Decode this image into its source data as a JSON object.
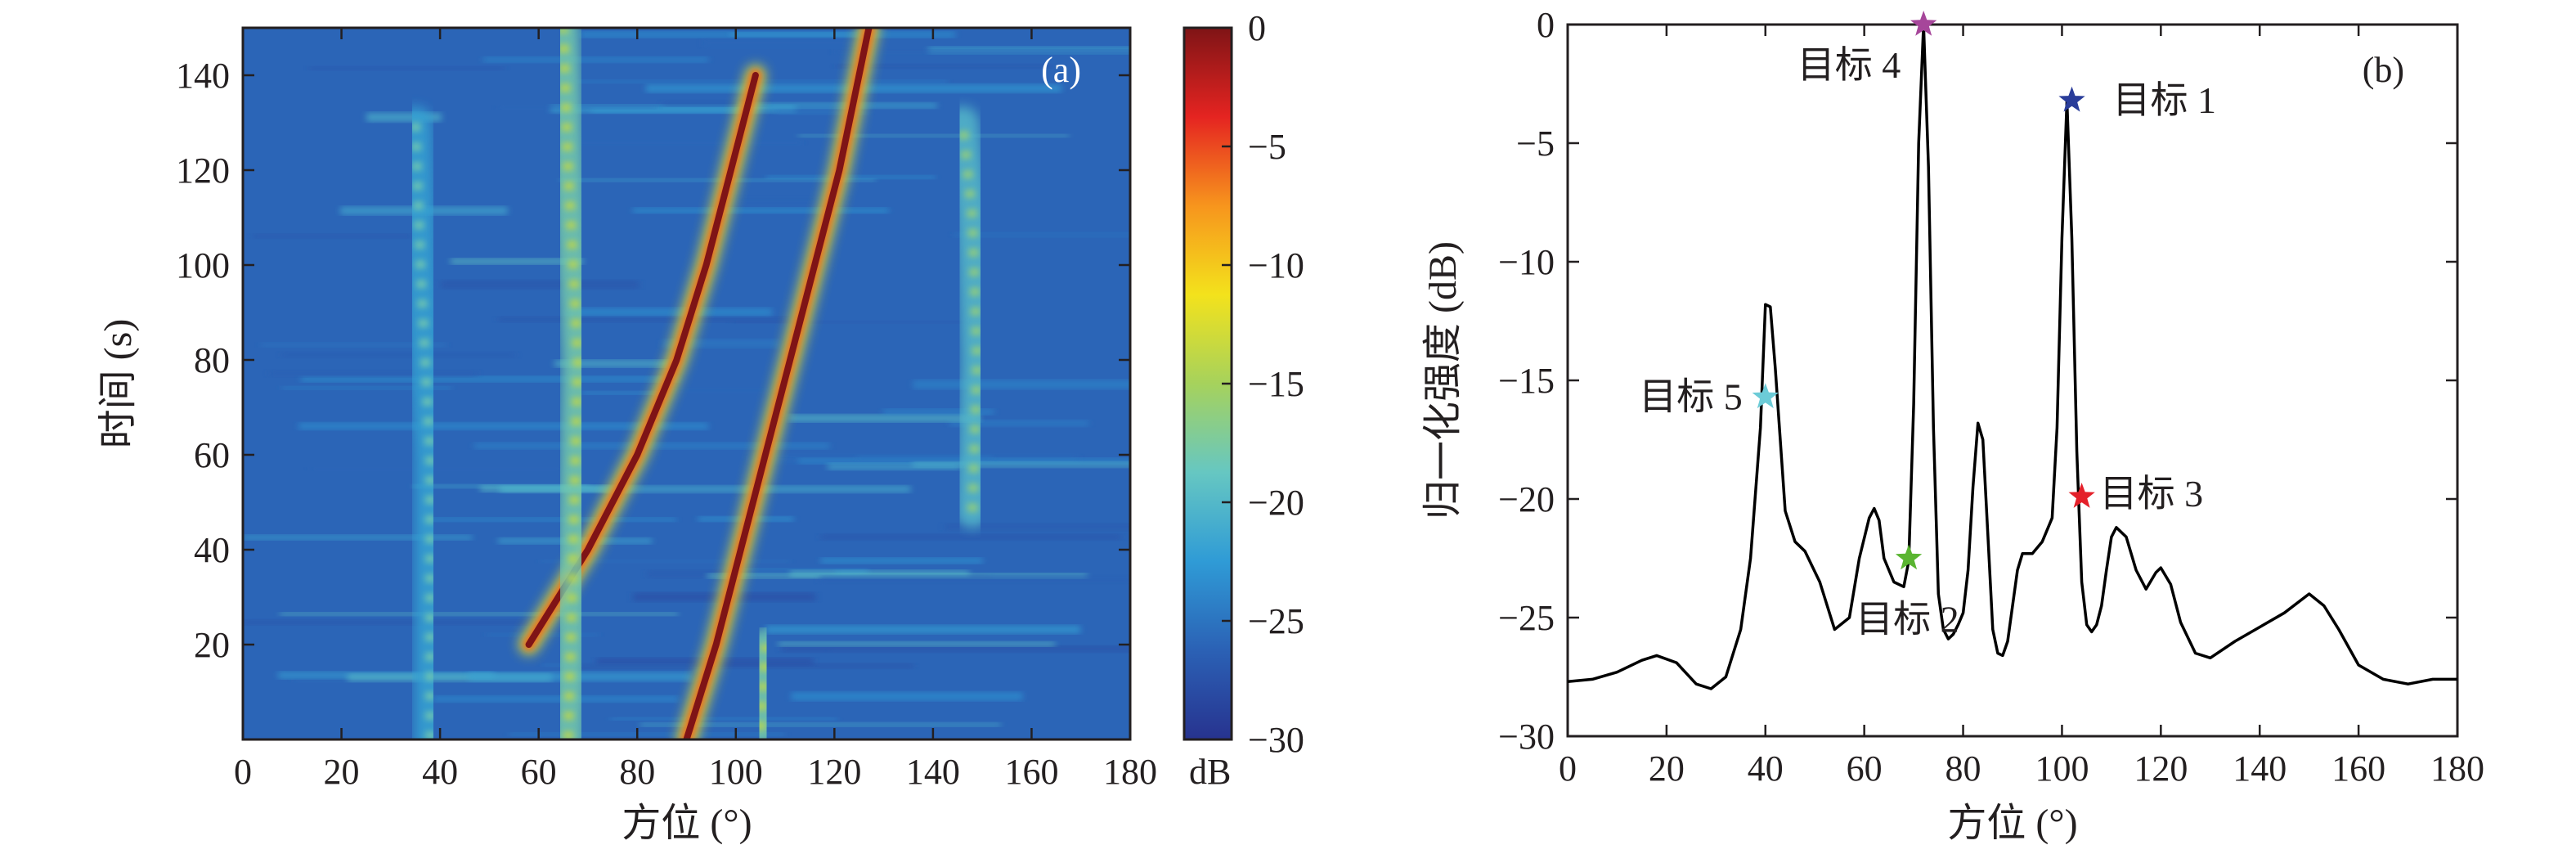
{
  "chart_data": [
    {
      "panel": "(a)",
      "type": "heatmap",
      "xlabel": "方位 (°)",
      "ylabel": "时间 (s)",
      "xlim": [
        0,
        180
      ],
      "ylim": [
        0,
        150
      ],
      "xticks": [
        "0",
        "20",
        "40",
        "60",
        "80",
        "100",
        "120",
        "140",
        "160",
        "180"
      ],
      "yticks": [
        "20",
        "40",
        "60",
        "80",
        "100",
        "120",
        "140"
      ],
      "colorbar": {
        "label": "dB",
        "range": [
          -30,
          0
        ],
        "ticks": [
          "0",
          "−5",
          "−10",
          "−15",
          "−20",
          "−25",
          "−30"
        ],
        "colormap": [
          "#27338f",
          "#2b61b5",
          "#2f9bd6",
          "#66c7c2",
          "#a6d25c",
          "#f3e21c",
          "#f7951d",
          "#e52421",
          "#7f1416"
        ]
      },
      "background_level_db": -26,
      "tracks": [
        {
          "points": [
            [
              58,
              20
            ],
            [
              70,
              40
            ],
            [
              80,
              60
            ],
            [
              88,
              80
            ],
            [
              94,
              100
            ],
            [
              99,
              120
            ],
            [
              104,
              140
            ]
          ],
          "level_db": 0
        },
        {
          "points": [
            [
              90,
              0
            ],
            [
              96,
              20
            ],
            [
              101,
              40
            ],
            [
              106,
              60
            ],
            [
              111,
              80
            ],
            [
              116,
              100
            ],
            [
              121,
              120
            ],
            [
              127,
              150
            ]
          ],
          "level_db": 0
        },
        {
          "points": [
            [
              66,
              0
            ],
            [
              67,
              40
            ],
            [
              68,
              80
            ],
            [
              66,
              120
            ],
            [
              65,
              150
            ]
          ],
          "level_db": -14
        },
        {
          "points": [
            [
              38,
              0
            ],
            [
              38,
              60
            ],
            [
              36,
              100
            ],
            [
              35,
              130
            ]
          ],
          "level_db": -18
        },
        {
          "points": [
            [
              148,
              48
            ],
            [
              149,
              80
            ],
            [
              148,
              110
            ],
            [
              146,
              130
            ]
          ],
          "level_db": -16
        },
        {
          "points": [
            [
              105,
              2
            ],
            [
              106,
              20
            ]
          ],
          "level_db": -14
        }
      ]
    },
    {
      "panel": "(b)",
      "type": "line",
      "xlabel": "方位 (°)",
      "ylabel": "归一化强度 (dB)",
      "xlim": [
        0,
        180
      ],
      "ylim": [
        -30,
        0
      ],
      "xticks": [
        "0",
        "20",
        "40",
        "60",
        "80",
        "100",
        "120",
        "140",
        "160",
        "180"
      ],
      "yticks": [
        "0",
        "−5",
        "−10",
        "−15",
        "−20",
        "−25",
        "−30"
      ],
      "series": [
        {
          "color": "#000000",
          "x": [
            0,
            5,
            10,
            15,
            18,
            22,
            26,
            29,
            32,
            35,
            37,
            39,
            40,
            41,
            42,
            44,
            46,
            48,
            51,
            54,
            57,
            59,
            61,
            62,
            63,
            64,
            66,
            68,
            69,
            70,
            71,
            72,
            73,
            74,
            75,
            76,
            77,
            78,
            79,
            80,
            81,
            82,
            83,
            84,
            85,
            86,
            87,
            88,
            89,
            90,
            91,
            92,
            94,
            96,
            98,
            99,
            100,
            101,
            102,
            103,
            104,
            105,
            106,
            107,
            108,
            109,
            110,
            111,
            113,
            115,
            117,
            119,
            120,
            122,
            124,
            127,
            130,
            135,
            140,
            145,
            150,
            153,
            156,
            160,
            165,
            170,
            175,
            180
          ],
          "y": [
            -27.7,
            -27.6,
            -27.3,
            -26.8,
            -26.6,
            -26.9,
            -27.8,
            -28.0,
            -27.5,
            -25.5,
            -22.5,
            -17.0,
            -11.8,
            -11.9,
            -14.5,
            -20.5,
            -21.8,
            -22.2,
            -23.5,
            -25.5,
            -25.0,
            -22.5,
            -20.8,
            -20.4,
            -20.9,
            -22.5,
            -23.5,
            -23.7,
            -22.6,
            -16.0,
            -5.0,
            0.0,
            -6.0,
            -17.0,
            -24.0,
            -25.5,
            -25.9,
            -25.7,
            -25.3,
            -24.8,
            -23.0,
            -19.5,
            -16.8,
            -17.5,
            -21.5,
            -25.5,
            -26.5,
            -26.6,
            -26.0,
            -24.5,
            -23.0,
            -22.3,
            -22.3,
            -21.8,
            -20.8,
            -17.0,
            -9.0,
            -3.2,
            -9.0,
            -18.0,
            -23.5,
            -25.3,
            -25.6,
            -25.3,
            -24.5,
            -23.0,
            -21.6,
            -21.2,
            -21.6,
            -23.0,
            -23.8,
            -23.1,
            -22.9,
            -23.6,
            -25.2,
            -26.5,
            -26.7,
            -26.0,
            -25.4,
            -24.8,
            -24.0,
            -24.5,
            -25.5,
            -27.0,
            -27.6,
            -27.8,
            -27.6,
            -27.6
          ]
        }
      ],
      "annotations": [
        {
          "label": "目标 1",
          "x": 102,
          "y": -3.2,
          "color": "#2a3d9a"
        },
        {
          "label": "目标 2",
          "x": 69,
          "y": -22.5,
          "color": "#5ab531"
        },
        {
          "label": "目标 3",
          "x": 104,
          "y": -19.9,
          "color": "#e4202a"
        },
        {
          "label": "目标 4",
          "x": 72,
          "y": 0,
          "color": "#a6469a"
        },
        {
          "label": "目标 5",
          "x": 40,
          "y": -15.7,
          "color": "#6ccbd7"
        }
      ]
    }
  ]
}
